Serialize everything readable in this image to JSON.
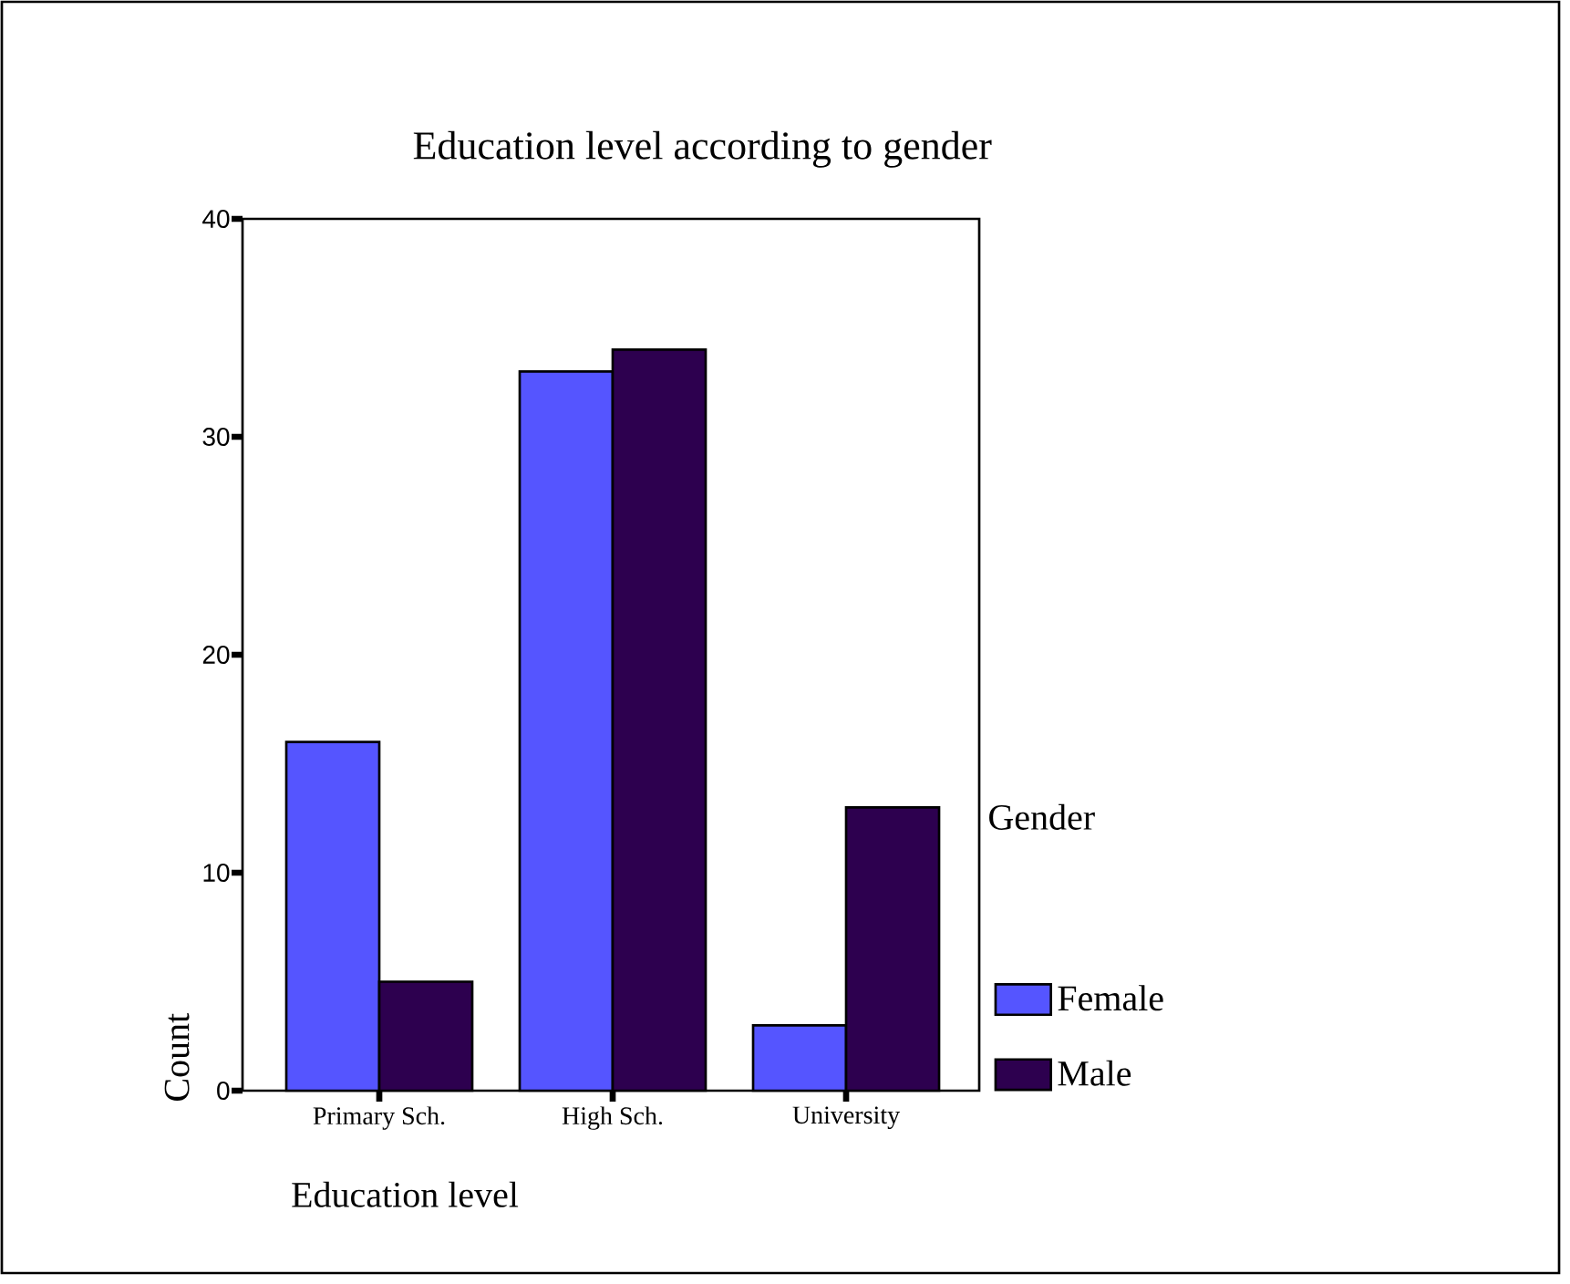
{
  "chart_data": {
    "type": "bar",
    "title": "Education level according to gender",
    "xlabel": "Education level",
    "ylabel": "Count",
    "legend_title": "Gender",
    "categories": [
      "Primary Sch.",
      "High Sch.",
      "University"
    ],
    "series": [
      {
        "name": "Female",
        "color": "#5555ff",
        "values": [
          16,
          33,
          3
        ]
      },
      {
        "name": "Male",
        "color": "#2d004f",
        "values": [
          5,
          34,
          13
        ]
      }
    ],
    "ylim": [
      0,
      40
    ],
    "yticks": [
      0,
      10,
      20,
      30,
      40
    ],
    "grid": false,
    "legend": "right"
  }
}
